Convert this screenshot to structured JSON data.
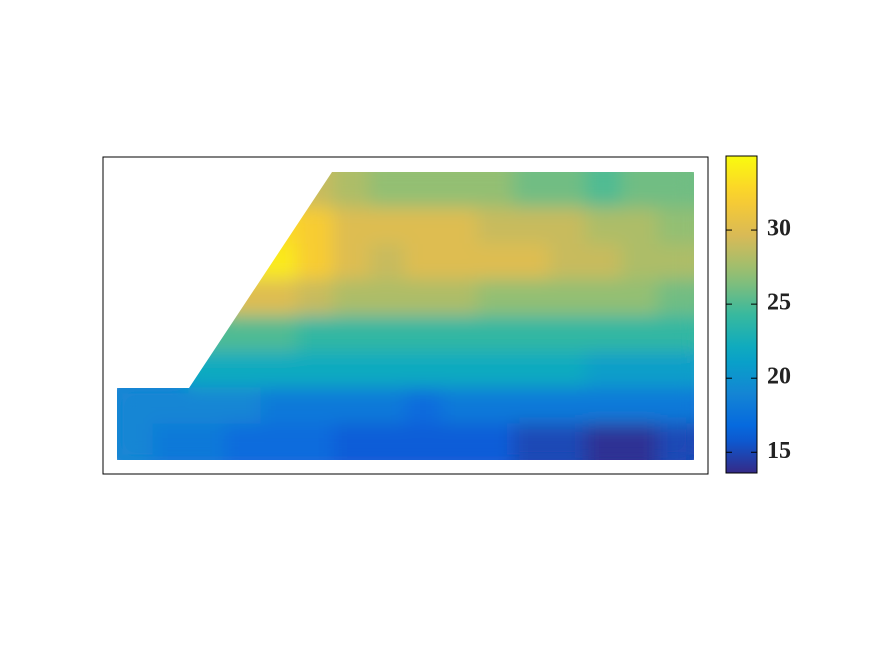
{
  "chart_data": {
    "type": "heatmap",
    "colormap": "parula",
    "z": [
      [
        null,
        null,
        null,
        null,
        null,
        29,
        28,
        27,
        27,
        27,
        27,
        26,
        26,
        25,
        26,
        26
      ],
      [
        null,
        null,
        null,
        null,
        33,
        32,
        30,
        30,
        30,
        30,
        29,
        29,
        29,
        28,
        28,
        27
      ],
      [
        null,
        null,
        null,
        34,
        34,
        32,
        30,
        29,
        30,
        30,
        30,
        30,
        29,
        29,
        28,
        28
      ],
      [
        null,
        null,
        null,
        30,
        30,
        29,
        28,
        28,
        28,
        28,
        27,
        27,
        27,
        27,
        27,
        26
      ],
      [
        null,
        null,
        25,
        25,
        25,
        24,
        24,
        24,
        24,
        24,
        24,
        24,
        24,
        24,
        24,
        24
      ],
      [
        null,
        null,
        22,
        22,
        22,
        22,
        22,
        22,
        22,
        22,
        22,
        22,
        22,
        21,
        21,
        21
      ],
      [
        19,
        19,
        19,
        19,
        18,
        18,
        18,
        18,
        17,
        18,
        18,
        18,
        18,
        18,
        18,
        18
      ],
      [
        19,
        18,
        18,
        17,
        17,
        17,
        16,
        16,
        16,
        16,
        16,
        15,
        15,
        14,
        14,
        15
      ]
    ],
    "clim": [
      13.6,
      35
    ],
    "cticks": [
      15,
      20,
      25,
      30
    ]
  }
}
